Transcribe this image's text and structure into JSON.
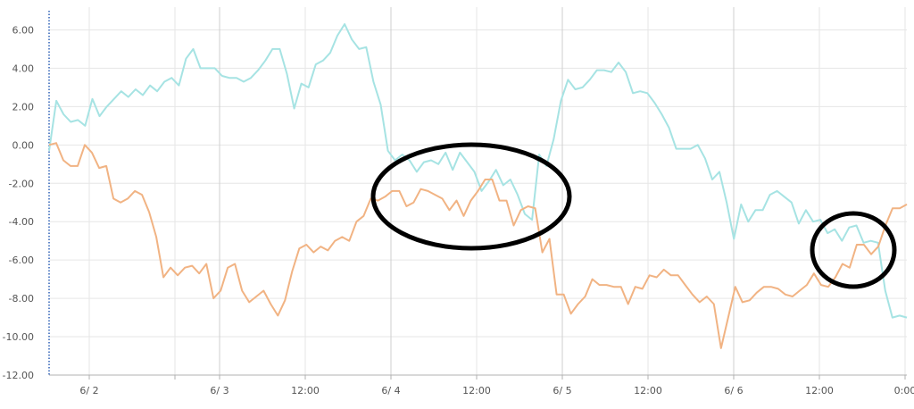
{
  "chart_data": {
    "type": "line",
    "title": "",
    "xlabel": "",
    "ylabel": "",
    "ylim": [
      -12,
      7
    ],
    "x_start": "6/ 2 00:00 - 0.7 days offset",
    "yticks": [
      {
        "value": 6,
        "label": "6.00"
      },
      {
        "value": 4,
        "label": "4.00"
      },
      {
        "value": 2,
        "label": "2.00"
      },
      {
        "value": 0,
        "label": "0.00"
      },
      {
        "value": -2,
        "label": "-2.00"
      },
      {
        "value": -4,
        "label": "-4.00"
      },
      {
        "value": -6,
        "label": "-6.00"
      },
      {
        "value": -8,
        "label": "-8.00"
      },
      {
        "value": -10,
        "label": "-10.00"
      },
      {
        "value": -12,
        "label": "-12.00"
      }
    ],
    "xticks": [
      {
        "label": "6/ 2",
        "major": false
      },
      {
        "label": "",
        "major": false
      },
      {
        "label": "6/ 3",
        "major": true
      },
      {
        "label": "12:00",
        "major": false
      },
      {
        "label": "6/ 4",
        "major": true
      },
      {
        "label": "12:00",
        "major": false
      },
      {
        "label": "6/ 5",
        "major": true
      },
      {
        "label": "12:00",
        "major": false
      },
      {
        "label": "6/ 6",
        "major": true
      },
      {
        "label": "12:00",
        "major": false
      },
      {
        "label": "0:00",
        "major": false
      }
    ],
    "grid": true,
    "series": [
      {
        "color": "#a6e3e3",
        "values": [
          -0.3,
          2.3,
          1.6,
          1.2,
          1.3,
          1.0,
          2.4,
          1.5,
          2.0,
          2.4,
          2.8,
          2.5,
          2.9,
          2.6,
          3.1,
          2.8,
          3.3,
          3.5,
          3.1,
          4.5,
          5.0,
          4.0,
          4.0,
          4.0,
          3.6,
          3.5,
          3.5,
          3.3,
          3.5,
          3.9,
          4.4,
          5.0,
          5.0,
          3.7,
          1.9,
          3.2,
          3.0,
          4.2,
          4.4,
          4.8,
          5.7,
          6.3,
          5.5,
          5.0,
          5.1,
          3.3,
          2.1,
          -0.3,
          -0.8,
          -0.5,
          -0.8,
          -1.4,
          -0.9,
          -0.8,
          -1.0,
          -0.4,
          -1.3,
          -0.4,
          -0.9,
          -1.4,
          -2.4,
          -1.9,
          -1.3,
          -2.1,
          -1.8,
          -2.6,
          -3.6,
          -3.9,
          -0.5,
          -1.1,
          0.3,
          2.3,
          3.4,
          2.9,
          3.0,
          3.4,
          3.9,
          3.9,
          3.8,
          4.3,
          3.8,
          2.7,
          2.8,
          2.7,
          2.2,
          1.6,
          0.9,
          -0.2,
          -0.2,
          -0.2,
          0.0,
          -0.7,
          -1.8,
          -1.4,
          -3.0,
          -4.9,
          -3.1,
          -4.0,
          -3.4,
          -3.4,
          -2.6,
          -2.4,
          -2.7,
          -3.0,
          -4.1,
          -3.4,
          -4.0,
          -3.9,
          -4.6,
          -4.4,
          -5.0,
          -4.3,
          -4.2,
          -5.1,
          -5.0,
          -5.1,
          -7.6,
          -9.0,
          -8.9,
          -9.0
        ]
      },
      {
        "color": "#f1b383",
        "values": [
          0.0,
          0.1,
          -0.8,
          -1.1,
          -1.1,
          0.0,
          -0.4,
          -1.2,
          -1.1,
          -2.8,
          -3.0,
          -2.8,
          -2.4,
          -2.6,
          -3.5,
          -4.8,
          -6.9,
          -6.4,
          -6.8,
          -6.4,
          -6.3,
          -6.7,
          -6.2,
          -8.0,
          -7.6,
          -6.4,
          -6.2,
          -7.6,
          -8.2,
          -7.9,
          -7.6,
          -8.3,
          -8.9,
          -8.1,
          -6.6,
          -5.4,
          -5.2,
          -5.6,
          -5.3,
          -5.5,
          -5.0,
          -4.8,
          -5.0,
          -4.0,
          -3.7,
          -2.8,
          -2.9,
          -2.7,
          -2.4,
          -2.4,
          -3.2,
          -3.0,
          -2.3,
          -2.4,
          -2.6,
          -2.8,
          -3.4,
          -2.9,
          -3.7,
          -2.9,
          -2.4,
          -1.8,
          -1.8,
          -2.9,
          -2.9,
          -4.2,
          -3.4,
          -3.2,
          -3.3,
          -5.6,
          -4.9,
          -7.8,
          -7.8,
          -8.8,
          -8.3,
          -7.9,
          -7.0,
          -7.3,
          -7.3,
          -7.4,
          -7.4,
          -8.3,
          -7.4,
          -7.5,
          -6.8,
          -6.9,
          -6.5,
          -6.8,
          -6.8,
          -7.3,
          -7.8,
          -8.2,
          -7.9,
          -8.3,
          -10.6,
          -9.0,
          -7.4,
          -8.2,
          -8.1,
          -7.7,
          -7.4,
          -7.4,
          -7.5,
          -7.8,
          -7.9,
          -7.6,
          -7.3,
          -6.7,
          -7.3,
          -7.4,
          -6.9,
          -6.2,
          -6.4,
          -5.2,
          -5.2,
          -5.7,
          -5.3,
          -4.2,
          -3.3,
          -3.3,
          -3.1
        ]
      }
    ],
    "annotations": [
      {
        "type": "ellipse",
        "color": "#000000"
      },
      {
        "type": "ellipse",
        "color": "#000000"
      }
    ]
  }
}
